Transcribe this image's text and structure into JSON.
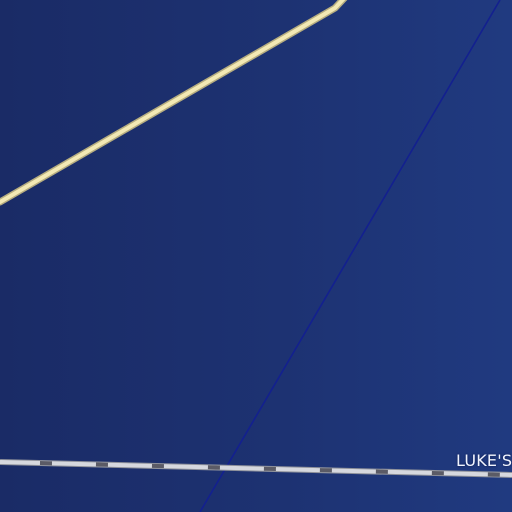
{
  "map": {
    "place_label": "LUKE'S",
    "colors": {
      "water": "#1d3272",
      "road_main": "#f3e9b4",
      "road_casing": "#b6ad80",
      "boundary_line": "#13208f",
      "railway_line": "#c9cbd2",
      "railway_dash": "#5b5b66",
      "label_text": "#f2f5ff"
    },
    "features": [
      {
        "kind": "road",
        "name": "main-road"
      },
      {
        "kind": "boundary",
        "name": "boundary-line"
      },
      {
        "kind": "railway",
        "name": "railway-line"
      }
    ]
  }
}
